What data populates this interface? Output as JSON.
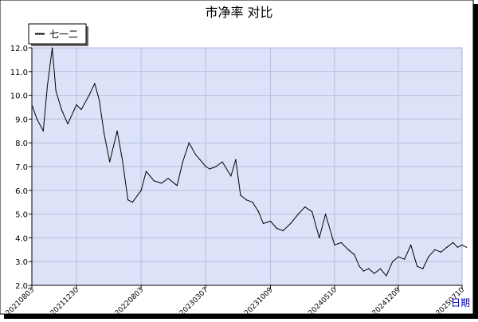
{
  "chart_data": {
    "type": "line",
    "title": "市净率  对比",
    "xlabel": "日期",
    "ylabel": "",
    "ylim": [
      2.0,
      12.0
    ],
    "yticks": [
      "2.0",
      "3.0",
      "4.0",
      "5.0",
      "6.0",
      "7.0",
      "8.0",
      "9.0",
      "10.0",
      "11.0",
      "12.0"
    ],
    "xticks": [
      "20210803",
      "20211230",
      "20220803",
      "20230307",
      "20231009",
      "20240510",
      "20241209",
      "20250710"
    ],
    "legend": {
      "position": "top-left"
    },
    "grid": true,
    "series": [
      {
        "name": "七一二",
        "color": "#000000",
        "x": [
          "20210803",
          "20210820",
          "20210910",
          "20210924",
          "20211010",
          "20211022",
          "20211110",
          "20211201",
          "20211230",
          "20220115",
          "20220210",
          "20220301",
          "20220316",
          "20220401",
          "20220420",
          "20220515",
          "20220601",
          "20220620",
          "20220705",
          "20220803",
          "20220820",
          "20220915",
          "20221010",
          "20221101",
          "20221201",
          "20221220",
          "20230110",
          "20230201",
          "20230215",
          "20230307",
          "20230320",
          "20230410",
          "20230501",
          "20230530",
          "20230615",
          "20230701",
          "20230720",
          "20230810",
          "20230830",
          "20230915",
          "20231009",
          "20231030",
          "20231120",
          "20231215",
          "20240110",
          "20240201",
          "20240225",
          "20240320",
          "20240410",
          "20240510",
          "20240601",
          "20240625",
          "20240715",
          "20240801",
          "20240815",
          "20240901",
          "20240920",
          "20241010",
          "20241030",
          "20241120",
          "20241209",
          "20241230",
          "20250120",
          "20250210",
          "20250301",
          "20250320",
          "20250410",
          "20250501",
          "20250520",
          "20250610",
          "20250625",
          "20250710",
          "20250725"
        ],
        "values": [
          9.6,
          9.0,
          8.5,
          10.4,
          12.0,
          10.2,
          9.4,
          8.8,
          9.6,
          9.4,
          10.0,
          10.5,
          9.8,
          8.4,
          7.2,
          8.5,
          7.3,
          5.6,
          5.5,
          6.0,
          6.8,
          6.4,
          6.3,
          6.5,
          6.2,
          7.2,
          8.0,
          7.5,
          7.3,
          7.0,
          6.9,
          7.0,
          7.2,
          6.6,
          7.3,
          5.8,
          5.6,
          5.5,
          5.1,
          4.6,
          4.7,
          4.4,
          4.3,
          4.6,
          5.0,
          5.3,
          5.1,
          4.0,
          5.0,
          3.7,
          3.8,
          3.5,
          3.3,
          2.8,
          2.6,
          2.7,
          2.5,
          2.7,
          2.4,
          3.0,
          3.2,
          3.1,
          3.7,
          2.8,
          2.7,
          3.2,
          3.5,
          3.4,
          3.6,
          3.8,
          3.6,
          3.7,
          3.6
        ]
      }
    ]
  }
}
